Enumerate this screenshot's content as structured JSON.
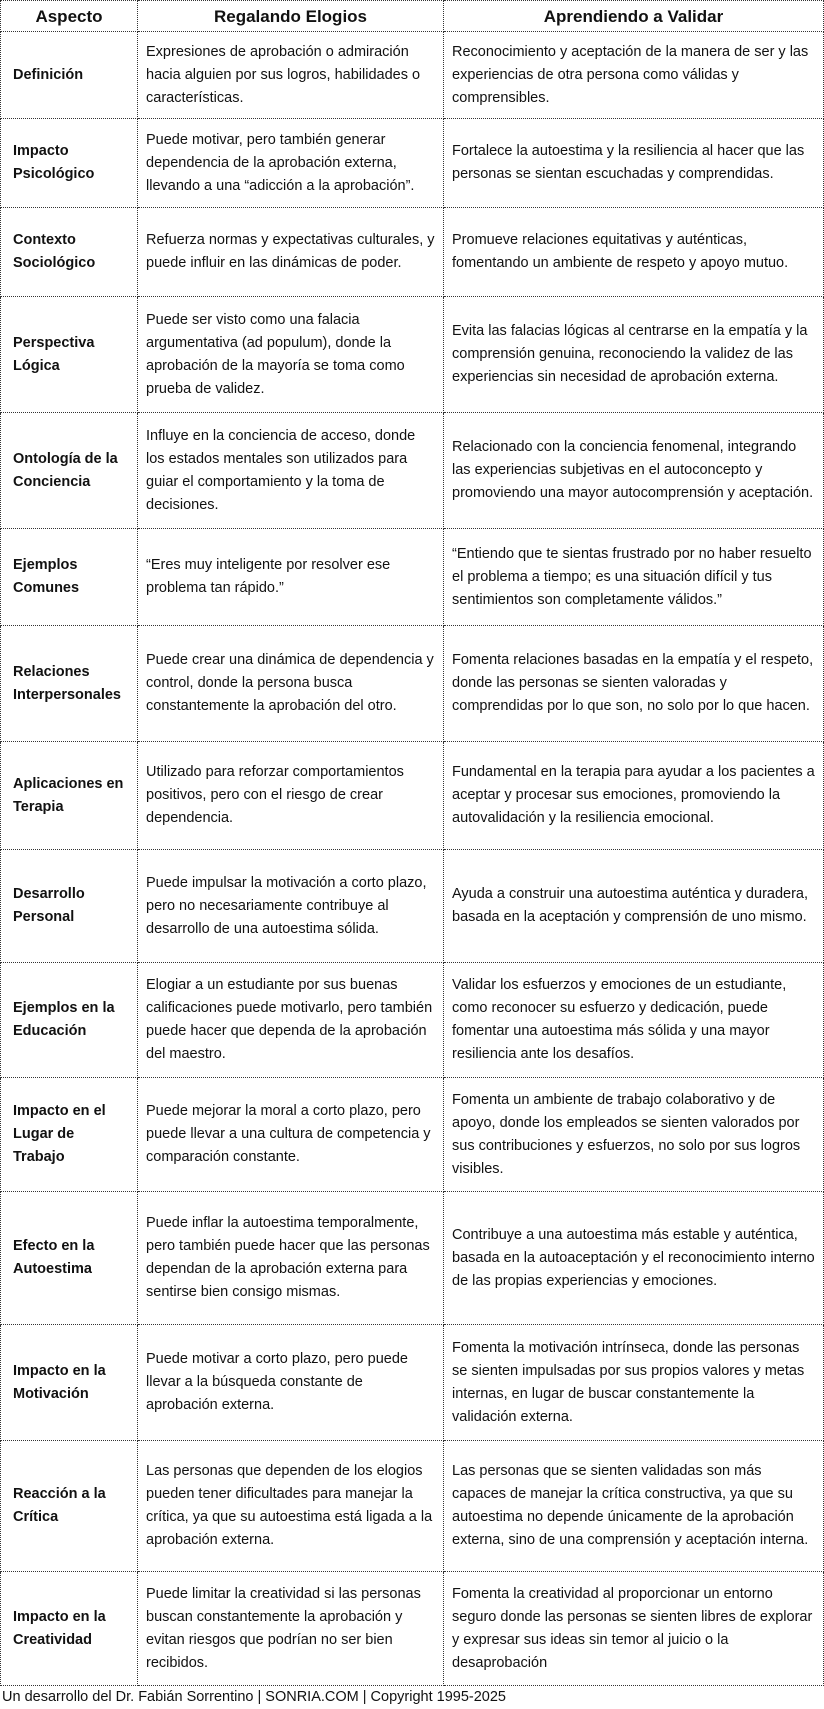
{
  "headers": [
    "Aspecto",
    "Regalando Elogios",
    "Aprendiendo a Validar"
  ],
  "rows": [
    {
      "aspect": "Definición",
      "elogios": "Expresiones de aprobación o admiración hacia alguien por sus logros, habilidades o características.",
      "validar": "Reconocimiento y aceptación de la manera de ser y las experiencias de otra persona como válidas y comprensibles."
    },
    {
      "aspect": "Impacto Psicológico",
      "elogios": "Puede motivar, pero también generar dependencia de la aprobación externa, llevando a una “adicción a la aprobación”.",
      "validar": "Fortalece la autoestima y la resiliencia al hacer que las personas se sientan escuchadas y comprendidas."
    },
    {
      "aspect": "Contexto Sociológico",
      "elogios": "Refuerza normas y expectativas culturales, y puede influir en las dinámicas de poder.",
      "validar": "Promueve relaciones equitativas y auténticas, fomentando un ambiente de respeto y apoyo mutuo."
    },
    {
      "aspect": "Perspectiva Lógica",
      "elogios": "Puede ser visto como una falacia argumentativa (ad populum), donde la aprobación de la mayoría se toma como prueba de validez.",
      "validar": "Evita las falacias lógicas al centrarse en la empatía y la comprensión genuina, reconociendo la validez de las experiencias sin necesidad de aprobación externa."
    },
    {
      "aspect": "Ontología de la Conciencia",
      "elogios": "Influye en la conciencia de acceso, donde los estados mentales son utilizados para guiar el comportamiento y la toma de decisiones.",
      "validar": "Relacionado con la conciencia fenomenal, integrando las experiencias subjetivas en el autoconcepto y promoviendo una mayor autocomprensión y aceptación."
    },
    {
      "aspect": "Ejemplos Comunes",
      "elogios": "“Eres muy inteligente por resolver ese problema tan rápido.”",
      "validar": "“Entiendo que te sientas frustrado por no haber resuelto el problema a tiempo; es una situación difícil y tus sentimientos son completamente válidos.”"
    },
    {
      "aspect": "Relaciones Interpersonales",
      "elogios": "Puede crear una dinámica de dependencia y control, donde la persona busca constantemente la aprobación del otro.",
      "validar": "Fomenta relaciones basadas en la empatía y el respeto, donde las personas se sienten valoradas y comprendidas por lo que son, no solo por lo que hacen."
    },
    {
      "aspect": "Aplicaciones en Terapia",
      "elogios": "Utilizado para reforzar comportamientos positivos, pero con el riesgo de crear dependencia.",
      "validar": "Fundamental en la terapia para ayudar a los pacientes a aceptar y procesar sus emociones, promoviendo la autovalidación y la resiliencia emocional."
    },
    {
      "aspect": "Desarrollo Personal",
      "elogios": "Puede impulsar la motivación a corto plazo, pero no necesariamente contribuye al desarrollo de una autoestima sólida.",
      "validar": "Ayuda a construir una autoestima auténtica y duradera, basada en la aceptación y comprensión de uno mismo."
    },
    {
      "aspect": "Ejemplos en la Educación",
      "elogios": "Elogiar a un estudiante por sus buenas calificaciones puede motivarlo, pero también puede hacer que dependa de la aprobación del maestro.",
      "validar": "Validar los esfuerzos y emociones de un estudiante, como reconocer su esfuerzo y dedicación, puede fomentar una autoestima más sólida y una mayor resiliencia ante los desafíos."
    },
    {
      "aspect": "Impacto en el Lugar de Trabajo",
      "elogios": "Puede mejorar la moral a corto plazo, pero puede llevar a una cultura de competencia y comparación constante.",
      "validar": "Fomenta un ambiente de trabajo colaborativo y de apoyo, donde los empleados se sienten valorados por sus contribuciones y esfuerzos, no solo por sus logros visibles."
    },
    {
      "aspect": "Efecto en la Autoestima",
      "elogios": "Puede inflar la autoestima temporalmente, pero también puede hacer que las personas dependan de la aprobación externa para sentirse bien consigo mismas.",
      "validar": "Contribuye a una autoestima más estable y auténtica, basada en la autoaceptación y el reconocimiento interno de las propias experiencias y emociones."
    },
    {
      "aspect": "Impacto en la Motivación",
      "elogios": "Puede motivar a corto plazo, pero puede llevar a la búsqueda constante de aprobación externa.",
      "validar": "Fomenta la motivación intrínseca, donde las personas se sienten impulsadas por sus propios valores y metas internas, en lugar de buscar constantemente la validación externa."
    },
    {
      "aspect": "Reacción a la Crítica",
      "elogios": "Las personas que dependen de los elogios pueden tener dificultades para manejar la crítica, ya que su autoestima está ligada a la aprobación externa.",
      "validar": "Las personas que se sienten validadas son más capaces de manejar la crítica constructiva, ya que su autoestima no depende únicamente de la aprobación externa, sino de una comprensión y aceptación interna."
    },
    {
      "aspect": "Impacto en la Creatividad",
      "elogios": "Puede limitar la creatividad si las personas buscan constantemente la aprobación y evitan riesgos que podrían no ser bien recibidos.",
      "validar": "Fomenta la creatividad al proporcionar un entorno seguro donde las personas se sienten libres de explorar y expresar sus ideas sin temor al juicio o la desaprobación"
    }
  ],
  "footer": "Un desarrollo del Dr. Fabián Sorrentino | SONRIA.COM | Copyright 1995-2025"
}
